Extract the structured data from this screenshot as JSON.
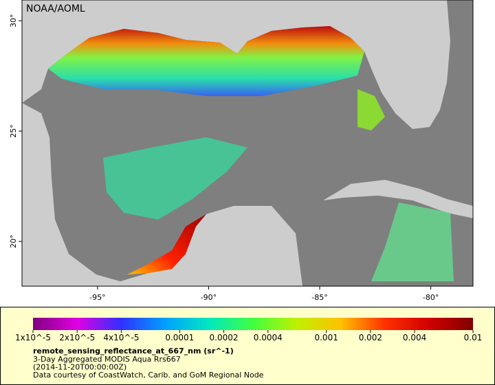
{
  "watermark": "NOAA/AOML",
  "map": {
    "xlim": [
      -98.4,
      -78.1
    ],
    "ylim": [
      17.97,
      30.94
    ],
    "xticks": [
      {
        "value": -95,
        "label": "-95°"
      },
      {
        "value": -90,
        "label": "-90°"
      },
      {
        "value": -85,
        "label": "-85°"
      },
      {
        "value": -80,
        "label": "-80°"
      }
    ],
    "yticks": [
      {
        "value": 20,
        "label": "20°"
      },
      {
        "value": 25,
        "label": "25°"
      },
      {
        "value": 30,
        "label": "30°"
      }
    ]
  },
  "colorbar": {
    "scale": "log",
    "lim": [
      1e-05,
      0.01
    ],
    "colors": [
      "#800080",
      "#e000e0",
      "#3030ff",
      "#00a0ff",
      "#00e8c0",
      "#40ff40",
      "#c0f000",
      "#ffc000",
      "#ff3000",
      "#d00000",
      "#800000"
    ],
    "ticks": [
      {
        "value": 1e-05,
        "label": "1x10^-5"
      },
      {
        "value": 2e-05,
        "label": "2x10^-5"
      },
      {
        "value": 4e-05,
        "label": "4x10^-5"
      },
      0.0001,
      0.0002,
      0.0004,
      0.001,
      0.002,
      0.004,
      0.01
    ]
  },
  "legend": {
    "variable": "remote_sensing_reflectance_at_667_nm (sr^-1)",
    "lines": [
      "3-Day Aggregated MODIS Aqua Rrs667",
      "(2014-11-20T00:00:00Z)",
      "Data courtesy of CoastWatch, Carib. and GoM Regional Node"
    ]
  }
}
